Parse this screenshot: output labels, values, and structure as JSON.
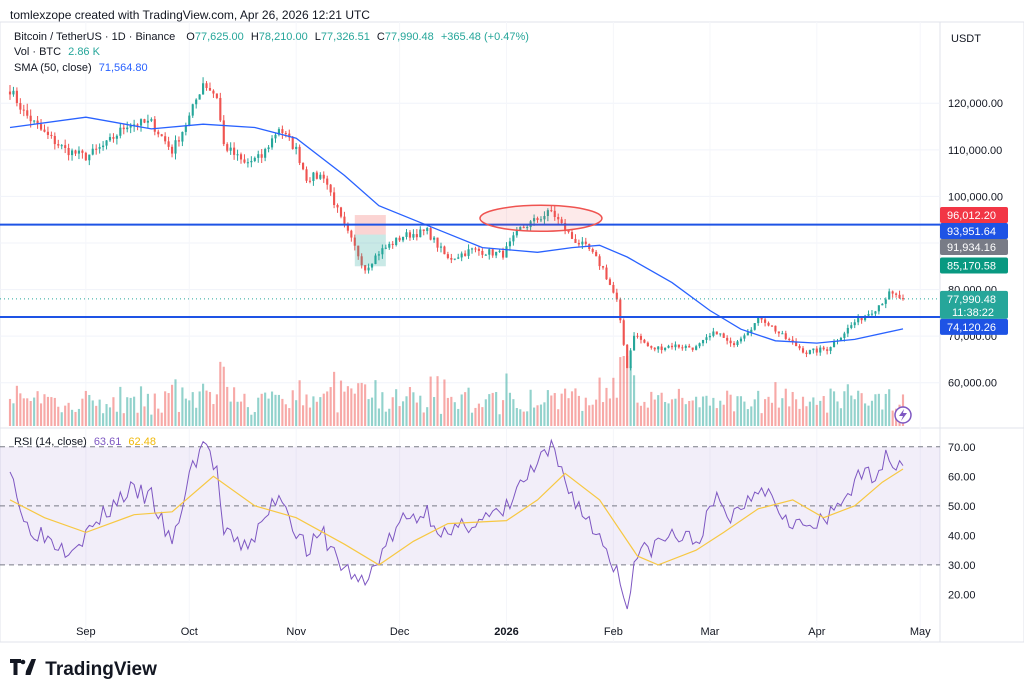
{
  "header": {
    "credit": "tomlexzope created with TradingView.com, Apr 26, 2026 12:21 UTC",
    "symbol": "Bitcoin / TetherUS · 1D · Binance",
    "o_label": "O",
    "o": "77,625.00",
    "h_label": "H",
    "h": "78,210.00",
    "l_label": "L",
    "l": "77,326.51",
    "c_label": "C",
    "c": "77,990.48",
    "change": "+365.48 (+0.47%)",
    "vol_label": "Vol · BTC",
    "vol": "2.86 K",
    "sma_label": "SMA (50, close)",
    "sma": "71,564.80",
    "rsi_label": "RSI (14, close)",
    "rsi": "63.61",
    "rsi_ma": "62.48",
    "currency": "USDT"
  },
  "logo_text": "TradingView",
  "colors": {
    "up": "#26a69a",
    "down": "#ef5350",
    "sma": "#2962ff",
    "rsi": "#7e57c2",
    "rsi_ma": "#f7c843",
    "hline": "#1e53e5"
  },
  "chart_data": [
    {
      "type": "candlestick",
      "title": "Bitcoin / TetherUS · 1D · Binance",
      "ylim": [
        52000,
        131000
      ],
      "y_ticks": [
        "120,000.00",
        "110,000.00",
        "100,000.00",
        "90,000.00",
        "80,000.00",
        "70,000.00",
        "60,000.00"
      ],
      "x_ticks": [
        "Sep",
        "Oct",
        "Nov",
        "Dec",
        "2026",
        "Feb",
        "Mar",
        "Apr",
        "May"
      ],
      "anchors": [
        [
          "2025-08-10",
          123000
        ],
        [
          "2025-08-14",
          118000
        ],
        [
          "2025-08-20",
          113500
        ],
        [
          "2025-08-26",
          110000
        ],
        [
          "2025-09-01",
          108500
        ],
        [
          "2025-09-07",
          111200
        ],
        [
          "2025-09-13",
          115500
        ],
        [
          "2025-09-20",
          115800
        ],
        [
          "2025-09-26",
          109800
        ],
        [
          "2025-10-01",
          117000
        ],
        [
          "2025-10-05",
          124500
        ],
        [
          "2025-10-09",
          121500
        ],
        [
          "2025-10-11",
          111000
        ],
        [
          "2025-10-17",
          107000
        ],
        [
          "2025-10-22",
          108500
        ],
        [
          "2025-10-27",
          114800
        ],
        [
          "2025-11-01",
          110000
        ],
        [
          "2025-11-04",
          104000
        ],
        [
          "2025-11-09",
          104500
        ],
        [
          "2025-11-14",
          95000
        ],
        [
          "2025-11-21",
          84500
        ],
        [
          "2025-11-25",
          88000
        ],
        [
          "2025-12-02",
          91500
        ],
        [
          "2025-12-09",
          92500
        ],
        [
          "2025-12-15",
          86500
        ],
        [
          "2025-12-22",
          88500
        ],
        [
          "2025-12-31",
          87600
        ],
        [
          "2026-01-05",
          93000
        ],
        [
          "2026-01-14",
          96800
        ],
        [
          "2026-01-20",
          91000
        ],
        [
          "2026-01-25",
          88500
        ],
        [
          "2026-01-29",
          84500
        ],
        [
          "2026-02-02",
          77500
        ],
        [
          "2026-02-05",
          63500
        ],
        [
          "2026-02-07",
          70500
        ],
        [
          "2026-02-12",
          67200
        ],
        [
          "2026-02-18",
          68000
        ],
        [
          "2026-02-25",
          67500
        ],
        [
          "2026-03-03",
          71000
        ],
        [
          "2026-03-07",
          68000
        ],
        [
          "2026-03-16",
          74000
        ],
        [
          "2026-03-22",
          70000
        ],
        [
          "2026-03-29",
          66500
        ],
        [
          "2026-04-04",
          67300
        ],
        [
          "2026-04-12",
          73000
        ],
        [
          "2026-04-18",
          76000
        ],
        [
          "2026-04-22",
          79000
        ],
        [
          "2026-04-26",
          77990
        ]
      ],
      "sma50": [
        [
          "2025-08-10",
          114800
        ],
        [
          "2025-09-01",
          117000
        ],
        [
          "2025-09-20",
          114500
        ],
        [
          "2025-10-05",
          115500
        ],
        [
          "2025-10-20",
          114800
        ],
        [
          "2025-11-01",
          112500
        ],
        [
          "2025-11-15",
          104500
        ],
        [
          "2025-11-25",
          98000
        ],
        [
          "2025-12-10",
          93500
        ],
        [
          "2025-12-25",
          89000
        ],
        [
          "2026-01-10",
          88000
        ],
        [
          "2026-01-20",
          89000
        ],
        [
          "2026-01-28",
          89500
        ],
        [
          "2026-02-05",
          87000
        ],
        [
          "2026-02-18",
          81500
        ],
        [
          "2026-03-01",
          75500
        ],
        [
          "2026-03-10",
          71500
        ],
        [
          "2026-03-20",
          69000
        ],
        [
          "2026-04-01",
          68500
        ],
        [
          "2026-04-12",
          69300
        ],
        [
          "2026-04-26",
          71564.8
        ]
      ],
      "horizontal_lines": [
        93951.64,
        74120.26
      ],
      "annotation_ellipse": {
        "center": [
          "2026-01-11",
          95300
        ],
        "note": ""
      },
      "annotation_box": {
        "from": "2025-11-18",
        "to": "2025-11-27",
        "top": 96000,
        "mid": 91800,
        "bottom": 85000
      },
      "price_tags": [
        {
          "value": 96012.2,
          "text": "96,012.20",
          "bg": "#f23645"
        },
        {
          "value": 93951.64,
          "text": "93,951.64",
          "bg": "#1e53e5"
        },
        {
          "value": 91934.16,
          "text": "91,934.16",
          "bg": "#787b86"
        },
        {
          "value": 85170.58,
          "text": "85,170.58",
          "bg": "#089981"
        },
        {
          "value": 77990.48,
          "text": "77,990.48",
          "bg": "#26a69a",
          "sub": "11:38:22"
        },
        {
          "value": 74120.26,
          "text": "74,120.26",
          "bg": "#1e53e5"
        }
      ]
    },
    {
      "type": "line",
      "title": "RSI (14, close)",
      "ylim": [
        10,
        75
      ],
      "y_ticks": [
        "70.00",
        "60.00",
        "50.00",
        "40.00",
        "30.00",
        "20.00"
      ],
      "band": [
        30,
        70
      ],
      "midline": 50,
      "rsi": [
        [
          "2025-08-10",
          65
        ],
        [
          "2025-08-14",
          44
        ],
        [
          "2025-08-20",
          40
        ],
        [
          "2025-08-26",
          36
        ],
        [
          "2025-09-01",
          40
        ],
        [
          "2025-09-07",
          48
        ],
        [
          "2025-09-13",
          55
        ],
        [
          "2025-09-20",
          53
        ],
        [
          "2025-09-26",
          36
        ],
        [
          "2025-10-01",
          60
        ],
        [
          "2025-10-05",
          72
        ],
        [
          "2025-10-09",
          62
        ],
        [
          "2025-10-11",
          40
        ],
        [
          "2025-10-17",
          36
        ],
        [
          "2025-10-22",
          43
        ],
        [
          "2025-10-27",
          55
        ],
        [
          "2025-11-01",
          42
        ],
        [
          "2025-11-04",
          35
        ],
        [
          "2025-11-09",
          40
        ],
        [
          "2025-11-14",
          30
        ],
        [
          "2025-11-21",
          23
        ],
        [
          "2025-11-25",
          33
        ],
        [
          "2025-12-02",
          45
        ],
        [
          "2025-12-09",
          48
        ],
        [
          "2025-12-15",
          39
        ],
        [
          "2025-12-22",
          45
        ],
        [
          "2025-12-31",
          47
        ],
        [
          "2026-01-05",
          57
        ],
        [
          "2026-01-14",
          69
        ],
        [
          "2026-01-20",
          54
        ],
        [
          "2026-01-25",
          44
        ],
        [
          "2026-01-29",
          38
        ],
        [
          "2026-02-02",
          28
        ],
        [
          "2026-02-05",
          16
        ],
        [
          "2026-02-07",
          32
        ],
        [
          "2026-02-12",
          36
        ],
        [
          "2026-02-18",
          40
        ],
        [
          "2026-02-25",
          38
        ],
        [
          "2026-03-03",
          52
        ],
        [
          "2026-03-07",
          46
        ],
        [
          "2026-03-16",
          58
        ],
        [
          "2026-03-22",
          48
        ],
        [
          "2026-03-29",
          42
        ],
        [
          "2026-04-04",
          45
        ],
        [
          "2026-04-12",
          58
        ],
        [
          "2026-04-18",
          62
        ],
        [
          "2026-04-22",
          67
        ],
        [
          "2026-04-26",
          63.61
        ]
      ],
      "rsi_ma": [
        [
          "2025-08-10",
          52
        ],
        [
          "2025-08-20",
          46
        ],
        [
          "2025-09-01",
          41
        ],
        [
          "2025-09-15",
          47
        ],
        [
          "2025-09-26",
          48
        ],
        [
          "2025-10-08",
          60
        ],
        [
          "2025-10-20",
          50
        ],
        [
          "2025-11-01",
          46
        ],
        [
          "2025-11-15",
          37
        ],
        [
          "2025-11-25",
          30
        ],
        [
          "2025-12-05",
          38
        ],
        [
          "2025-12-15",
          44
        ],
        [
          "2026-01-01",
          45
        ],
        [
          "2026-01-10",
          52
        ],
        [
          "2026-01-18",
          61
        ],
        [
          "2026-01-28",
          52
        ],
        [
          "2026-02-08",
          33
        ],
        [
          "2026-02-14",
          30
        ],
        [
          "2026-02-25",
          35
        ],
        [
          "2026-03-05",
          41
        ],
        [
          "2026-03-15",
          49
        ],
        [
          "2026-03-25",
          52
        ],
        [
          "2026-04-03",
          46
        ],
        [
          "2026-04-12",
          50
        ],
        [
          "2026-04-20",
          58
        ],
        [
          "2026-04-26",
          62.48
        ]
      ]
    }
  ]
}
